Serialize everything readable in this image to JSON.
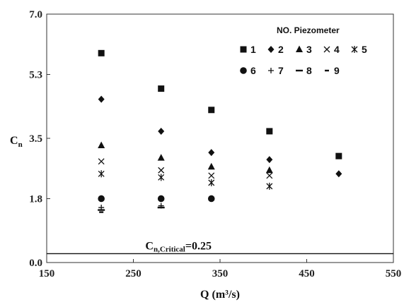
{
  "chart_data": {
    "type": "scatter",
    "title": "",
    "xlabel": "Q (m³/s)",
    "ylabel": {
      "main": "C",
      "sub": "n"
    },
    "xlim": [
      150,
      550
    ],
    "ylim": [
      0.0,
      7.0
    ],
    "xticks": [
      "150",
      "250",
      "350",
      "450",
      "550"
    ],
    "yticks": [
      "0.0",
      "1.8",
      "3.5",
      "5.3",
      "7.0"
    ],
    "grid": false,
    "legend": {
      "title": "NO. Piezometer",
      "position": "top-right"
    },
    "series": [
      {
        "name": "1",
        "marker": "square",
        "points": [
          [
            213,
            5.9
          ],
          [
            282,
            4.9
          ],
          [
            340,
            4.3
          ],
          [
            407,
            3.7
          ],
          [
            487,
            3.0
          ]
        ]
      },
      {
        "name": "2",
        "marker": "diamond",
        "points": [
          [
            213,
            4.6
          ],
          [
            282,
            3.7
          ],
          [
            340,
            3.1
          ],
          [
            407,
            2.9
          ],
          [
            487,
            2.5
          ]
        ]
      },
      {
        "name": "3",
        "marker": "triangle",
        "points": [
          [
            213,
            3.3
          ],
          [
            282,
            2.95
          ],
          [
            340,
            2.7
          ],
          [
            407,
            2.6
          ]
        ]
      },
      {
        "name": "4",
        "marker": "x",
        "points": [
          [
            213,
            2.85
          ],
          [
            282,
            2.6
          ],
          [
            340,
            2.45
          ],
          [
            407,
            2.45
          ]
        ]
      },
      {
        "name": "5",
        "marker": "star",
        "points": [
          [
            213,
            2.5
          ],
          [
            282,
            2.4
          ],
          [
            340,
            2.25
          ],
          [
            407,
            2.15
          ]
        ]
      },
      {
        "name": "6",
        "marker": "circle",
        "points": [
          [
            213,
            1.8
          ],
          [
            282,
            1.8
          ],
          [
            340,
            1.8
          ]
        ]
      },
      {
        "name": "7",
        "marker": "plus",
        "points": [
          [
            213,
            1.55
          ],
          [
            282,
            1.6
          ]
        ]
      },
      {
        "name": "8",
        "marker": "wide-dash",
        "points": [
          [
            213,
            1.48
          ],
          [
            282,
            1.55
          ]
        ]
      },
      {
        "name": "9",
        "marker": "short-dash",
        "points": [
          [
            213,
            1.42
          ]
        ]
      }
    ],
    "reference_line": {
      "y": 0.25,
      "label_main": "C",
      "label_sub": "n,Critical",
      "label_suffix": "=0.25"
    }
  }
}
